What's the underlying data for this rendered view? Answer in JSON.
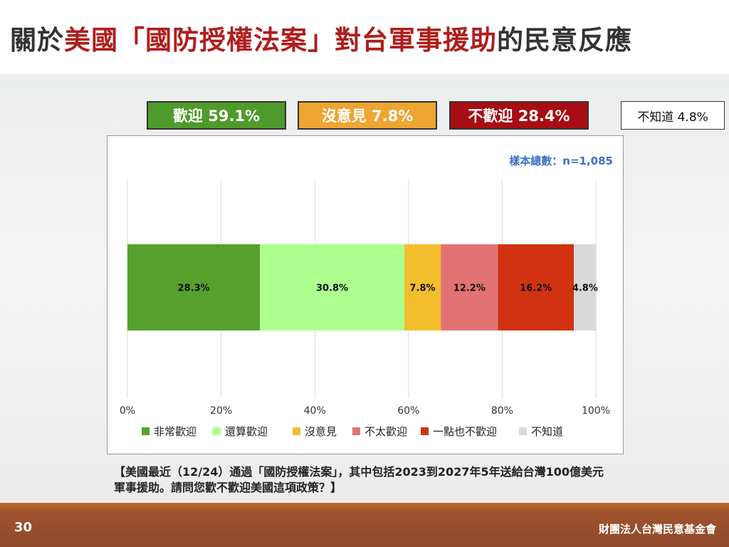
{
  "title": {
    "part1": "關於",
    "part2": "美國「國防授權法案」對台軍事援助",
    "part3": "的民意反應"
  },
  "summary": {
    "welcome": "歡迎 59.1%",
    "neutral": "沒意見 7.8%",
    "unwelcome": "不歡迎 28.4%",
    "unknown": "不知道 4.8%"
  },
  "sample_note": "樣本總數：n=1,085",
  "question": "【美國最近（12/24）通過「國防授權法案」，其中包括2023到2027年5年送給台灣100億美元軍事援助。請問您歡不歡迎美國這項政策？】",
  "footer": {
    "page_number": "30",
    "org": "財團法人台灣民意基金會"
  },
  "colors": {
    "title_accent": "#b01d1d",
    "welcome": "#4e9a2a",
    "neutral": "#eea531",
    "unwelcome": "#a70d12"
  },
  "chart_data": {
    "type": "bar",
    "orientation": "horizontal-stacked-100",
    "categories": [
      ""
    ],
    "series": [
      {
        "name": "非常歡迎",
        "values": [
          28.3
        ],
        "color": "#56a12e",
        "label": "28.3%"
      },
      {
        "name": "還算歡迎",
        "values": [
          30.8
        ],
        "color": "#adff8f",
        "label": "30.8%"
      },
      {
        "name": "沒意見",
        "values": [
          7.8
        ],
        "color": "#f2be2e",
        "label": "7.8%"
      },
      {
        "name": "不太歡迎",
        "values": [
          12.2
        ],
        "color": "#e37373",
        "label": "12.2%"
      },
      {
        "name": "一點也不歡迎",
        "values": [
          16.2
        ],
        "color": "#d13312",
        "label": "16.2%"
      },
      {
        "name": "不知道",
        "values": [
          4.8
        ],
        "color": "#d9d9d9",
        "label": "4.8%"
      }
    ],
    "xlim": [
      0,
      100
    ],
    "xticks": [
      "0%",
      "20%",
      "40%",
      "60%",
      "80%",
      "100%"
    ],
    "grid": true,
    "legend": "bottom"
  }
}
